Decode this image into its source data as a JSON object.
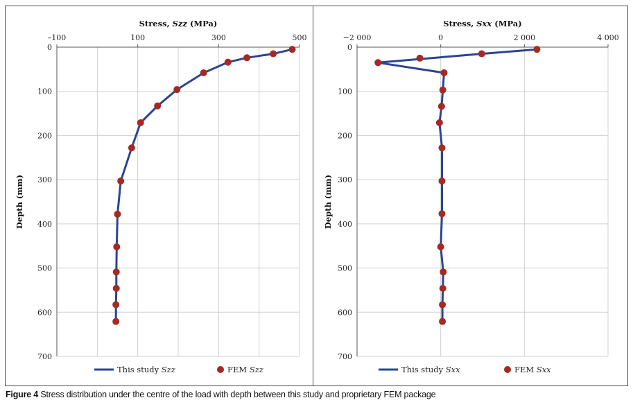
{
  "colors": {
    "line": "#2a4594",
    "marker": "#a52a24",
    "grid": "#d0d0d0",
    "axis": "#555555"
  },
  "caption": {
    "label": "Figure 4",
    "text": "Stress distribution under the centre of the load with depth between this study and proprietary FEM package"
  },
  "chart_data": [
    {
      "type": "line",
      "title_prefix": "Stress, ",
      "title_var": "Szz",
      "title_suffix": " (MPa)",
      "xlabel": "Stress, Szz (MPa)",
      "ylabel": "Depth (mm)",
      "xlim": [
        -100,
        500
      ],
      "ylim": [
        0,
        700
      ],
      "xticks": [
        -100,
        100,
        300,
        500
      ],
      "xtick_labels": [
        "–100",
        "100",
        "300",
        "500"
      ],
      "xgrid": [
        -100,
        0,
        100,
        200,
        300,
        400,
        500
      ],
      "yticks": [
        0,
        100,
        200,
        300,
        400,
        500,
        600,
        700
      ],
      "ytick_labels": [
        "0",
        "100",
        "200",
        "300",
        "400",
        "500",
        "600",
        "700"
      ],
      "series": [
        {
          "name": "This study Szz",
          "legend_prefix": "This study ",
          "legend_var": "Szz",
          "kind": "line",
          "x": [
            482,
            435,
            370,
            323,
            263,
            197,
            149,
            107,
            85,
            58,
            50,
            48,
            47,
            47,
            46,
            46
          ],
          "y": [
            5,
            15,
            24,
            34,
            58,
            96,
            133,
            171,
            228,
            303,
            378,
            452,
            509,
            546,
            583,
            621
          ]
        },
        {
          "name": "FEM Szz",
          "legend_prefix": "FEM ",
          "legend_var": "Szz",
          "kind": "scatter",
          "x": [
            482,
            435,
            370,
            323,
            263,
            197,
            149,
            107,
            85,
            58,
            50,
            48,
            47,
            47,
            46,
            46
          ],
          "y": [
            5,
            15,
            24,
            34,
            58,
            96,
            133,
            171,
            228,
            303,
            378,
            452,
            509,
            546,
            583,
            621
          ]
        }
      ]
    },
    {
      "type": "line",
      "title_prefix": "Stress, ",
      "title_var": "Sxx",
      "title_suffix": " (MPa)",
      "xlabel": "Stress, Sxx (MPa)",
      "ylabel": "Depth (mm)",
      "xlim": [
        -2000,
        4000
      ],
      "ylim": [
        0,
        700
      ],
      "xticks": [
        -2000,
        0,
        2000,
        4000
      ],
      "xtick_labels": [
        "−2 000",
        "0",
        "2 000",
        "4 000"
      ],
      "xgrid": [
        -2000,
        0,
        2000,
        4000
      ],
      "yticks": [
        0,
        100,
        200,
        300,
        400,
        500,
        600,
        700
      ],
      "ytick_labels": [
        "0",
        "100",
        "200",
        "300",
        "400",
        "500",
        "600",
        "700"
      ],
      "series": [
        {
          "name": "This study Sxx",
          "legend_prefix": "This study ",
          "legend_var": "Sxx",
          "kind": "line",
          "x": [
            2300,
            980,
            -1500,
            80,
            50,
            20,
            -30,
            30,
            30,
            30,
            0,
            60,
            50,
            40,
            40
          ],
          "y": [
            5,
            15,
            35,
            58,
            97,
            134,
            171,
            228,
            303,
            377,
            452,
            509,
            546,
            583,
            621
          ]
        },
        {
          "name": "FEM Sxx",
          "legend_prefix": "FEM ",
          "legend_var": "Sxx",
          "kind": "scatter",
          "x": [
            2300,
            980,
            -500,
            -1500,
            80,
            50,
            20,
            -30,
            30,
            30,
            30,
            0,
            60,
            50,
            40,
            40
          ],
          "y": [
            5,
            15,
            25,
            35,
            58,
            97,
            134,
            171,
            228,
            303,
            377,
            452,
            509,
            546,
            583,
            621
          ]
        }
      ]
    }
  ]
}
